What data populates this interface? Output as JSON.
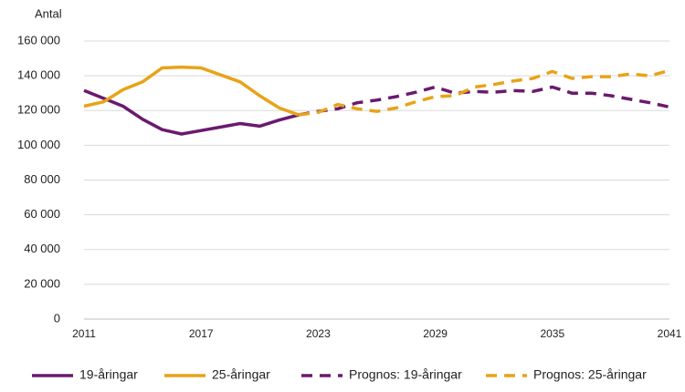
{
  "chart_data": {
    "type": "line",
    "y_label": "Antal",
    "x": [
      2011,
      2012,
      2013,
      2014,
      2015,
      2016,
      2017,
      2018,
      2019,
      2020,
      2021,
      2022,
      2023,
      2024,
      2025,
      2026,
      2027,
      2028,
      2029,
      2030,
      2031,
      2032,
      2033,
      2034,
      2035,
      2036,
      2037,
      2038,
      2039,
      2040,
      2041
    ],
    "xlim": [
      2011,
      2041
    ],
    "xticks": [
      2011,
      2017,
      2023,
      2029,
      2035,
      2041
    ],
    "ylim": [
      0,
      160000
    ],
    "yticks": [
      0,
      {
        "value": 20000,
        "label": "20 000"
      },
      {
        "value": 40000,
        "label": "40 000"
      },
      {
        "value": 60000,
        "label": "60 000"
      },
      {
        "value": 80000,
        "label": "80 000"
      },
      {
        "value": 100000,
        "label": "100 000"
      },
      {
        "value": 120000,
        "label": "120 000"
      },
      {
        "value": 140000,
        "label": "140 000"
      },
      {
        "value": 160000,
        "label": "160 000"
      }
    ],
    "grid": true,
    "legend": "bottom",
    "series": [
      {
        "name": "19-åringar",
        "color": "#6a1a6e",
        "dashed": false,
        "values": [
          131500,
          127000,
          122500,
          115000,
          109000,
          106500,
          108500,
          110500,
          112500,
          111000,
          114500,
          117500,
          null,
          null,
          null,
          null,
          null,
          null,
          null,
          null,
          null,
          null,
          null,
          null,
          null,
          null,
          null,
          null,
          null,
          null,
          null
        ]
      },
      {
        "name": "25-åringar",
        "color": "#e8a317",
        "dashed": false,
        "values": [
          122500,
          125000,
          132000,
          136500,
          144500,
          145000,
          144500,
          140500,
          136500,
          128500,
          121500,
          117500,
          null,
          null,
          null,
          null,
          null,
          null,
          null,
          null,
          null,
          null,
          null,
          null,
          null,
          null,
          null,
          null,
          null,
          null,
          null
        ]
      },
      {
        "name": "Prognos: 19-åringar",
        "color": "#6a1a6e",
        "dashed": true,
        "values": [
          null,
          null,
          null,
          null,
          null,
          null,
          null,
          null,
          null,
          null,
          null,
          117500,
          119500,
          121000,
          124500,
          126000,
          128000,
          130500,
          133500,
          130000,
          131000,
          130500,
          131500,
          131000,
          133500,
          130000,
          130000,
          128500,
          126500,
          124500,
          122000
        ]
      },
      {
        "name": "Prognos: 25-åringar",
        "color": "#e8a317",
        "dashed": true,
        "values": [
          null,
          null,
          null,
          null,
          null,
          null,
          null,
          null,
          null,
          null,
          null,
          117500,
          119000,
          123500,
          121000,
          119500,
          121500,
          125000,
          128000,
          128500,
          133500,
          135000,
          137000,
          138500,
          142500,
          138500,
          139500,
          139500,
          141000,
          140000,
          143000
        ]
      }
    ]
  }
}
